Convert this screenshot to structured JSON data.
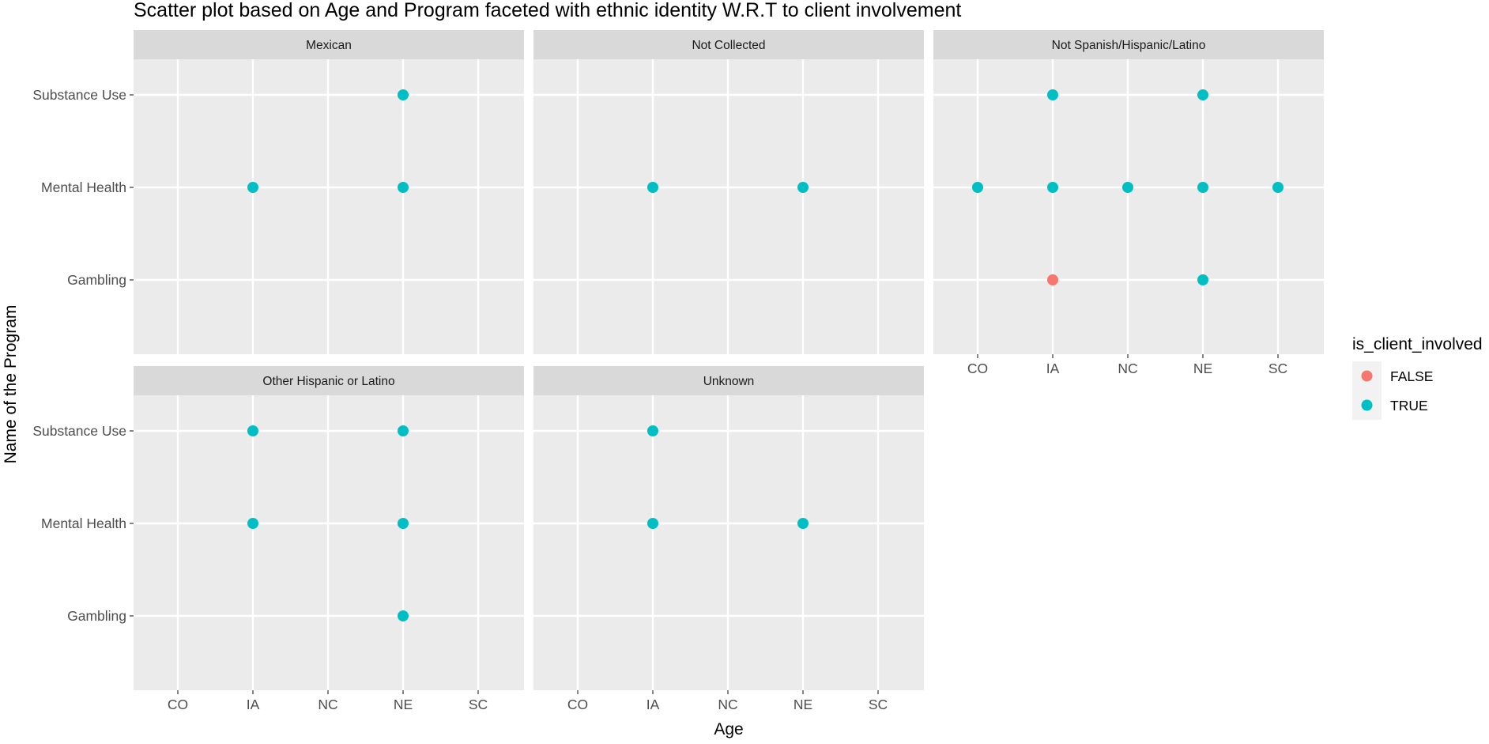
{
  "chart_data": {
    "type": "scatter",
    "title": "Scatter plot based on  Age and Program faceted with ethnic identity W.R.T to client involvement",
    "xlabel": "Age",
    "ylabel": "Name of the Program",
    "x_categories": [
      "CO",
      "IA",
      "NC",
      "NE",
      "SC"
    ],
    "y_categories": [
      "Gambling",
      "Mental Health",
      "Substance Use"
    ],
    "legend": {
      "title": "is_client_involved",
      "position": "right",
      "entries": [
        {
          "label": "FALSE",
          "color": "#F8766D"
        },
        {
          "label": "TRUE",
          "color": "#00BFC4"
        }
      ]
    },
    "grid": true,
    "facets": [
      {
        "name": "Mexican",
        "points": [
          {
            "x": "NE",
            "y": "Substance Use",
            "involved": "TRUE"
          },
          {
            "x": "IA",
            "y": "Mental Health",
            "involved": "TRUE"
          },
          {
            "x": "NE",
            "y": "Mental Health",
            "involved": "TRUE"
          }
        ]
      },
      {
        "name": "Not Collected",
        "points": [
          {
            "x": "IA",
            "y": "Mental Health",
            "involved": "TRUE"
          },
          {
            "x": "NE",
            "y": "Mental Health",
            "involved": "TRUE"
          }
        ]
      },
      {
        "name": "Not Spanish/Hispanic/Latino",
        "points": [
          {
            "x": "IA",
            "y": "Substance Use",
            "involved": "TRUE"
          },
          {
            "x": "NE",
            "y": "Substance Use",
            "involved": "TRUE"
          },
          {
            "x": "CO",
            "y": "Mental Health",
            "involved": "TRUE"
          },
          {
            "x": "IA",
            "y": "Mental Health",
            "involved": "TRUE"
          },
          {
            "x": "NC",
            "y": "Mental Health",
            "involved": "TRUE"
          },
          {
            "x": "NE",
            "y": "Mental Health",
            "involved": "TRUE"
          },
          {
            "x": "SC",
            "y": "Mental Health",
            "involved": "TRUE"
          },
          {
            "x": "IA",
            "y": "Gambling",
            "involved": "FALSE"
          },
          {
            "x": "NE",
            "y": "Gambling",
            "involved": "TRUE"
          }
        ]
      },
      {
        "name": "Other Hispanic or Latino",
        "points": [
          {
            "x": "IA",
            "y": "Substance Use",
            "involved": "TRUE"
          },
          {
            "x": "NE",
            "y": "Substance Use",
            "involved": "TRUE"
          },
          {
            "x": "IA",
            "y": "Mental Health",
            "involved": "TRUE"
          },
          {
            "x": "NE",
            "y": "Mental Health",
            "involved": "TRUE"
          },
          {
            "x": "NE",
            "y": "Gambling",
            "involved": "TRUE"
          }
        ]
      },
      {
        "name": "Unknown",
        "points": [
          {
            "x": "IA",
            "y": "Substance Use",
            "involved": "TRUE"
          },
          {
            "x": "IA",
            "y": "Mental Health",
            "involved": "TRUE"
          },
          {
            "x": "NE",
            "y": "Mental Health",
            "involved": "TRUE"
          }
        ]
      }
    ]
  }
}
